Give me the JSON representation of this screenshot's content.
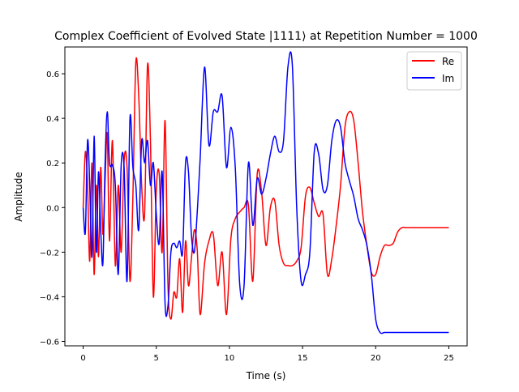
{
  "chart_data": {
    "type": "line",
    "title": "Complex Coefficient of Evolved State |1111⟩ at Repetition Number = 1000",
    "xlabel": "Time (s)",
    "ylabel": "Amplitude",
    "xlim": [
      -1.25,
      26.25
    ],
    "ylim": [
      -0.62,
      0.72
    ],
    "xticks": [
      0,
      5,
      10,
      15,
      20,
      25
    ],
    "xtick_labels": [
      "0",
      "5",
      "10",
      "15",
      "20",
      "25"
    ],
    "yticks": [
      -0.6,
      -0.4,
      -0.2,
      0.0,
      0.2,
      0.4,
      0.6
    ],
    "ytick_labels": [
      "−0.6",
      "−0.4",
      "−0.2",
      "0.0",
      "0.2",
      "0.4",
      "0.6"
    ],
    "grid": false,
    "legend_position": "upper right",
    "series": [
      {
        "name": "Re",
        "color": "#ff0000",
        "x": [
          0,
          0.15,
          0.3,
          0.45,
          0.6,
          0.75,
          0.9,
          1.05,
          1.2,
          1.35,
          1.5,
          1.65,
          1.8,
          2.0,
          2.2,
          2.4,
          2.6,
          2.8,
          3.0,
          3.2,
          3.4,
          3.6,
          3.8,
          4.0,
          4.2,
          4.4,
          4.6,
          4.8,
          5.0,
          5.2,
          5.4,
          5.6,
          5.8,
          6.0,
          6.2,
          6.4,
          6.6,
          6.8,
          7.0,
          7.2,
          7.4,
          7.6,
          7.8,
          8.0,
          8.3,
          8.6,
          8.9,
          9.2,
          9.5,
          9.8,
          10.1,
          10.4,
          10.7,
          11.0,
          11.3,
          11.6,
          11.9,
          12.2,
          12.5,
          12.8,
          13.1,
          13.4,
          13.7,
          14.0,
          14.3,
          14.6,
          14.9,
          15.2,
          15.5,
          15.8,
          16.1,
          16.4,
          16.7,
          17.0,
          17.3,
          17.6,
          17.9,
          18.2,
          18.5,
          18.8,
          19.1,
          19.4,
          19.7,
          20.0,
          20.3,
          20.6,
          20.9,
          21.2,
          21.5,
          21.8,
          22.1,
          22.4,
          22.7,
          23.0,
          23.3,
          23.6,
          23.9,
          24.2,
          24.5,
          24.8,
          25.0
        ],
        "y": [
          0,
          0.25,
          0.1,
          -0.24,
          0.2,
          -0.3,
          0.1,
          -0.22,
          0.18,
          -0.12,
          0.12,
          0.33,
          -0.15,
          0.3,
          -0.26,
          0.1,
          -0.2,
          0.21,
          0.18,
          -0.33,
          0.05,
          0.65,
          0.5,
          0.1,
          -0.03,
          0.64,
          0.3,
          -0.4,
          0.08,
          0.15,
          -0.2,
          0.39,
          -0.35,
          -0.5,
          -0.38,
          -0.4,
          -0.23,
          -0.47,
          -0.15,
          -0.35,
          -0.23,
          -0.1,
          -0.19,
          -0.48,
          -0.25,
          -0.15,
          -0.12,
          -0.35,
          -0.2,
          -0.48,
          -0.14,
          -0.05,
          -0.02,
          0.0,
          0.01,
          -0.33,
          0.15,
          0.07,
          -0.17,
          0.0,
          0.03,
          -0.17,
          -0.25,
          -0.26,
          -0.26,
          -0.24,
          -0.18,
          0.05,
          0.09,
          0.02,
          -0.04,
          -0.03,
          -0.3,
          -0.23,
          -0.08,
          0.1,
          0.36,
          0.43,
          0.39,
          0.2,
          -0.02,
          -0.17,
          -0.29,
          -0.3,
          -0.22,
          -0.17,
          -0.17,
          -0.16,
          -0.11,
          -0.09,
          -0.09,
          -0.09,
          -0.09,
          -0.09,
          -0.09,
          -0.09,
          -0.09,
          -0.09,
          -0.09,
          -0.09,
          -0.09
        ]
      },
      {
        "name": "Im",
        "color": "#0000ff",
        "x": [
          0,
          0.15,
          0.3,
          0.45,
          0.6,
          0.75,
          0.9,
          1.05,
          1.2,
          1.35,
          1.5,
          1.65,
          1.8,
          2.0,
          2.2,
          2.4,
          2.6,
          2.8,
          3.0,
          3.2,
          3.4,
          3.6,
          3.8,
          4.0,
          4.2,
          4.4,
          4.6,
          4.8,
          5.0,
          5.2,
          5.4,
          5.6,
          5.8,
          6.0,
          6.2,
          6.4,
          6.6,
          6.8,
          7.0,
          7.2,
          7.4,
          7.6,
          7.8,
          8.0,
          8.3,
          8.6,
          8.9,
          9.2,
          9.5,
          9.8,
          10.1,
          10.4,
          10.7,
          11.0,
          11.3,
          11.6,
          11.9,
          12.2,
          12.5,
          12.8,
          13.1,
          13.4,
          13.7,
          14.0,
          14.3,
          14.6,
          14.9,
          15.2,
          15.5,
          15.8,
          16.1,
          16.4,
          16.7,
          17.0,
          17.3,
          17.6,
          17.9,
          18.2,
          18.5,
          18.8,
          19.1,
          19.4,
          19.7,
          20.0,
          20.3,
          20.6,
          20.9,
          21.2,
          21.5,
          21.8,
          22.1,
          22.4,
          22.7,
          23.0,
          23.3,
          23.6,
          23.9,
          24.2,
          24.5,
          24.8,
          25.0
        ],
        "y": [
          0,
          -0.11,
          0.3,
          0.1,
          -0.22,
          0.32,
          -0.2,
          0.16,
          -0.1,
          -0.25,
          0.2,
          0.43,
          0.2,
          0.19,
          0.1,
          -0.3,
          0.19,
          0.18,
          -0.33,
          0.4,
          0.18,
          0.1,
          -0.1,
          0.3,
          0.2,
          0.3,
          0.1,
          0.2,
          -0.03,
          -0.16,
          0.16,
          -0.43,
          -0.44,
          -0.2,
          -0.16,
          -0.18,
          -0.15,
          -0.2,
          0.2,
          0.16,
          -0.12,
          -0.2,
          -0.02,
          0.22,
          0.63,
          0.28,
          0.43,
          0.43,
          0.5,
          0.18,
          0.36,
          0.18,
          -0.34,
          -0.35,
          0.2,
          -0.08,
          0.13,
          0.06,
          0.13,
          0.24,
          0.32,
          0.25,
          0.3,
          0.63,
          0.64,
          0.0,
          -0.33,
          -0.3,
          -0.2,
          0.25,
          0.24,
          0.08,
          0.1,
          0.3,
          0.39,
          0.36,
          0.2,
          0.12,
          0.05,
          -0.05,
          -0.1,
          -0.17,
          -0.3,
          -0.5,
          -0.56,
          -0.56,
          -0.56,
          -0.56,
          -0.56,
          -0.56,
          -0.56,
          -0.56,
          -0.56,
          -0.56,
          -0.56,
          -0.56,
          -0.56,
          -0.56,
          -0.56,
          -0.56,
          -0.56
        ]
      }
    ]
  }
}
